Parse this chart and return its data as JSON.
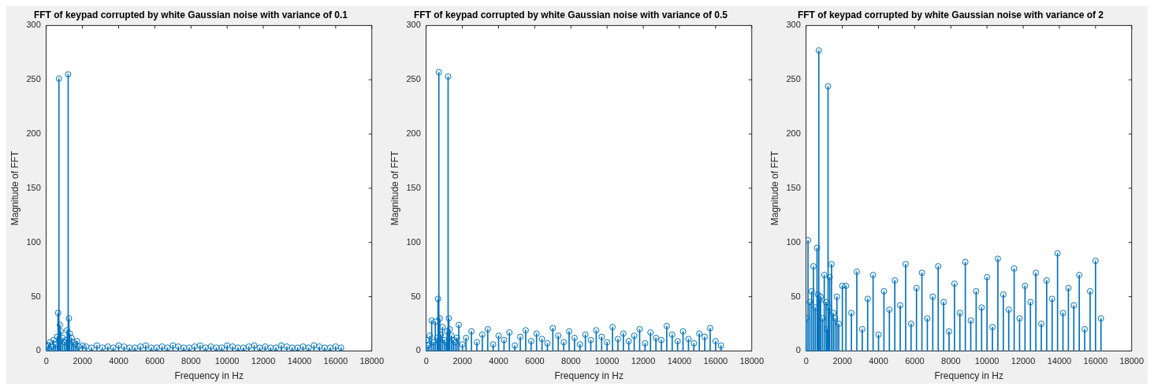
{
  "chart_data": [
    {
      "type": "lollipop",
      "title": "FFT of keypad corrupted by white Gaussian noise with variance of 0.1",
      "xlabel": "Frequency in Hz",
      "ylabel": "Magnitude of FFT",
      "color": "#0072bd",
      "marker": "circle",
      "xlim": [
        0,
        18000
      ],
      "xticks": [
        0,
        2000,
        4000,
        6000,
        8000,
        10000,
        12000,
        14000,
        16000,
        18000
      ],
      "ylim": [
        0,
        300
      ],
      "yticks": [
        0,
        50,
        100,
        150,
        200,
        250,
        300
      ],
      "x": [
        0,
        100,
        200,
        300,
        400,
        500,
        600,
        650,
        697,
        750,
        800,
        900,
        1000,
        1100,
        1150,
        1209,
        1250,
        1300,
        1400,
        1500,
        1600,
        1700,
        1800,
        2000,
        2200,
        2500,
        2800,
        3100,
        3400,
        3700,
        4000,
        4300,
        4600,
        4900,
        5200,
        5500,
        5800,
        6100,
        6400,
        6700,
        7000,
        7300,
        7600,
        7900,
        8200,
        8500,
        8800,
        9100,
        9400,
        9700,
        10000,
        10300,
        10600,
        10900,
        11200,
        11500,
        11800,
        12100,
        12400,
        12700,
        13000,
        13300,
        13600,
        13900,
        14200,
        14500,
        14800,
        15100,
        15400,
        15700,
        16000,
        16300
      ],
      "values": [
        4,
        5,
        8,
        4,
        10,
        6,
        13,
        35,
        251,
        24,
        18,
        12,
        8,
        10,
        19,
        255,
        30,
        16,
        12,
        8,
        6,
        9,
        4,
        5,
        4,
        3,
        5,
        3,
        4,
        3,
        5,
        4,
        3,
        3,
        4,
        5,
        3,
        3,
        4,
        3,
        5,
        4,
        3,
        3,
        4,
        5,
        3,
        4,
        3,
        3,
        5,
        4,
        3,
        3,
        4,
        5,
        3,
        4,
        3,
        3,
        5,
        4,
        3,
        3,
        4,
        3,
        5,
        4,
        3,
        3,
        4,
        3
      ]
    },
    {
      "type": "lollipop",
      "title": "FFT of keypad corrupted by white Gaussian noise with variance of 0.5",
      "xlabel": "Frequency in Hz",
      "ylabel": "Magnitude of FFT",
      "color": "#0072bd",
      "marker": "circle",
      "xlim": [
        0,
        18000
      ],
      "xticks": [
        0,
        2000,
        4000,
        6000,
        8000,
        10000,
        12000,
        14000,
        16000,
        18000
      ],
      "ylim": [
        0,
        300
      ],
      "yticks": [
        0,
        50,
        100,
        150,
        200,
        250,
        300
      ],
      "x": [
        0,
        100,
        200,
        300,
        400,
        500,
        600,
        650,
        697,
        750,
        800,
        900,
        1000,
        1100,
        1150,
        1209,
        1250,
        1300,
        1400,
        1500,
        1600,
        1700,
        1800,
        2000,
        2200,
        2500,
        2800,
        3100,
        3400,
        3700,
        4000,
        4300,
        4600,
        4900,
        5200,
        5500,
        5800,
        6100,
        6400,
        6700,
        7000,
        7300,
        7600,
        7900,
        8200,
        8500,
        8800,
        9100,
        9400,
        9700,
        10000,
        10300,
        10600,
        10900,
        11200,
        11500,
        11800,
        12100,
        12400,
        12700,
        13000,
        13300,
        13600,
        13900,
        14200,
        14500,
        14800,
        15100,
        15400,
        15700,
        16000,
        16300
      ],
      "values": [
        10,
        5,
        14,
        28,
        8,
        27,
        12,
        48,
        257,
        30,
        15,
        22,
        10,
        8,
        18,
        253,
        30,
        20,
        14,
        10,
        8,
        12,
        24,
        6,
        12,
        18,
        8,
        15,
        20,
        6,
        14,
        10,
        17,
        5,
        13,
        19,
        9,
        16,
        11,
        7,
        21,
        14,
        8,
        18,
        12,
        6,
        15,
        10,
        19,
        13,
        8,
        22,
        11,
        16,
        9,
        14,
        20,
        7,
        17,
        12,
        10,
        23,
        15,
        9,
        18,
        11,
        7,
        16,
        13,
        21,
        9,
        5
      ]
    },
    {
      "type": "lollipop",
      "title": "FFT of keypad corrupted by white Gaussian noise with variance of 2",
      "xlabel": "Frequency in Hz",
      "ylabel": "Magnitude of FFT",
      "color": "#0072bd",
      "marker": "circle",
      "xlim": [
        0,
        18000
      ],
      "xticks": [
        0,
        2000,
        4000,
        6000,
        8000,
        10000,
        12000,
        14000,
        16000,
        18000
      ],
      "ylim": [
        0,
        300
      ],
      "yticks": [
        0,
        50,
        100,
        150,
        200,
        250,
        300
      ],
      "x": [
        0,
        100,
        200,
        300,
        400,
        500,
        600,
        650,
        697,
        750,
        800,
        900,
        1000,
        1100,
        1150,
        1209,
        1250,
        1300,
        1400,
        1500,
        1600,
        1700,
        1800,
        2000,
        2200,
        2500,
        2800,
        3100,
        3400,
        3700,
        4000,
        4300,
        4600,
        4900,
        5200,
        5500,
        5800,
        6100,
        6400,
        6700,
        7000,
        7300,
        7600,
        7900,
        8200,
        8500,
        8800,
        9100,
        9400,
        9700,
        10000,
        10300,
        10600,
        10900,
        11200,
        11500,
        11800,
        12100,
        12400,
        12700,
        13000,
        13300,
        13600,
        13900,
        14200,
        14500,
        14800,
        15100,
        15400,
        15700,
        16000,
        16300
      ],
      "values": [
        30,
        102,
        45,
        55,
        78,
        40,
        95,
        52,
        277,
        47,
        50,
        30,
        70,
        45,
        20,
        244,
        40,
        68,
        80,
        35,
        30,
        50,
        25,
        60,
        60,
        35,
        73,
        20,
        48,
        70,
        15,
        55,
        38,
        65,
        42,
        80,
        25,
        58,
        72,
        30,
        50,
        78,
        45,
        18,
        62,
        35,
        82,
        28,
        55,
        40,
        68,
        22,
        85,
        52,
        38,
        76,
        30,
        60,
        45,
        72,
        25,
        65,
        48,
        90,
        35,
        58,
        42,
        70,
        20,
        55,
        83,
        30
      ]
    }
  ]
}
